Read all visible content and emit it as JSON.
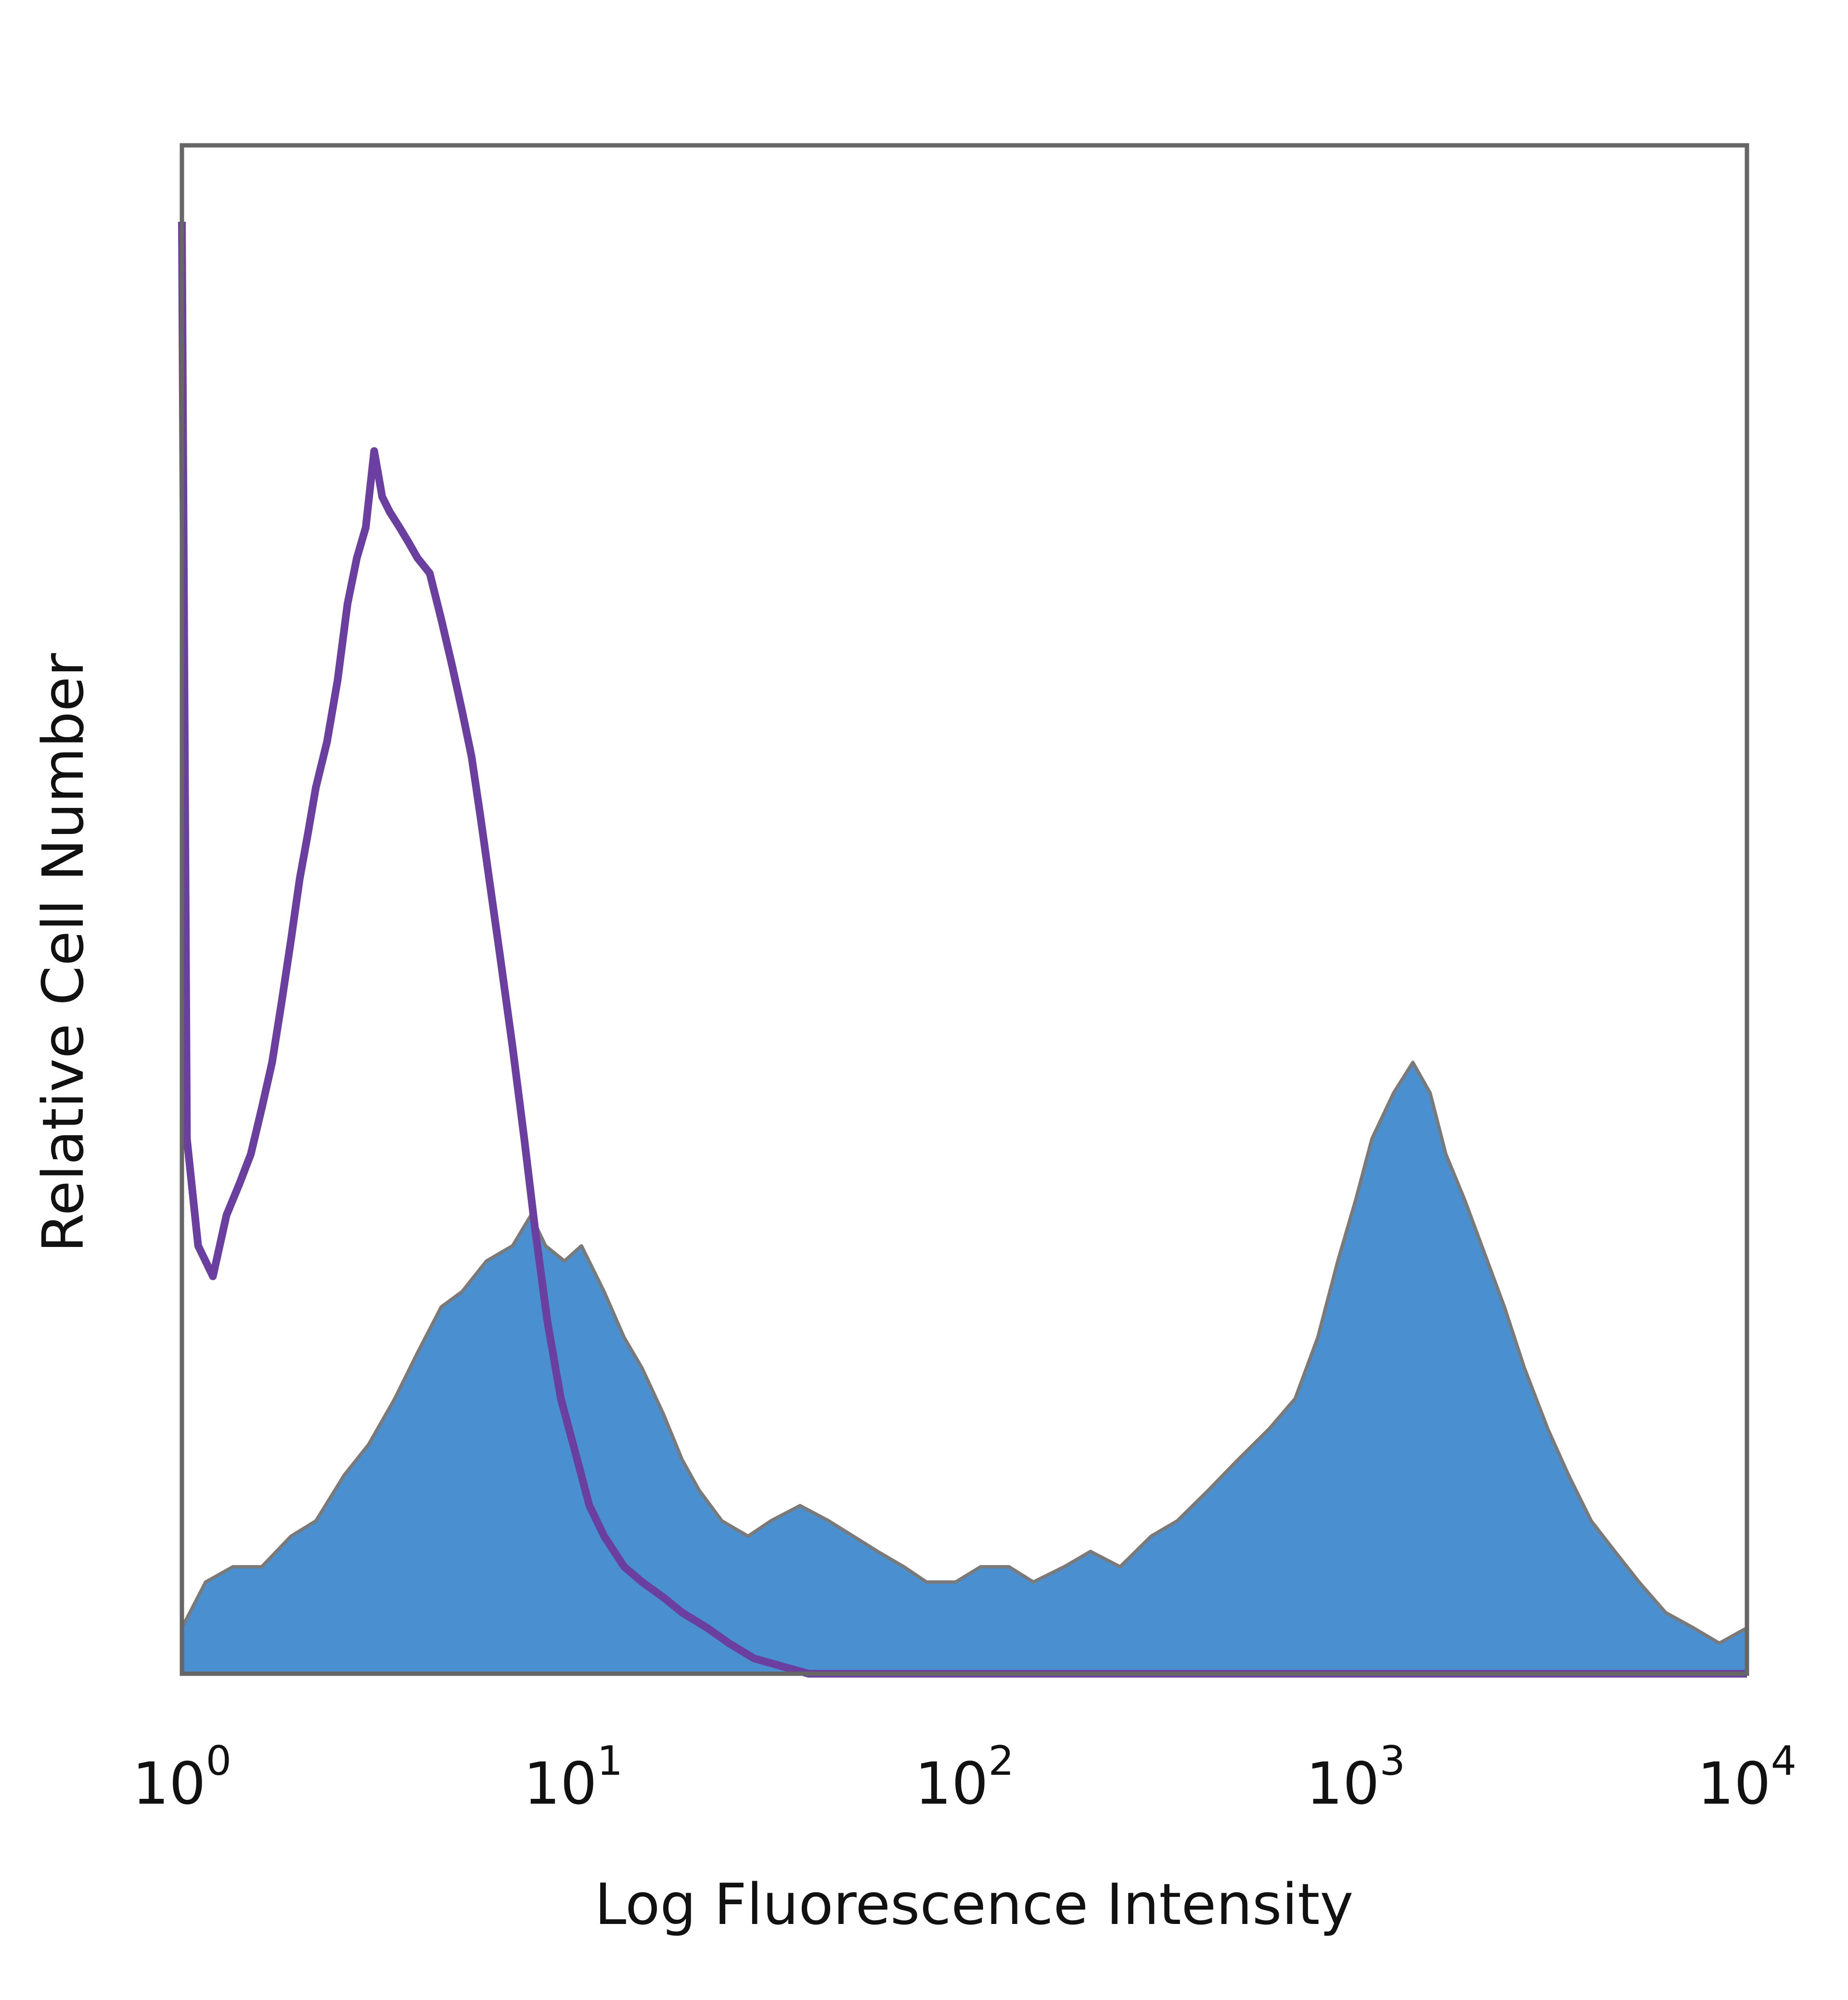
{
  "chart_data": {
    "type": "area",
    "title": "",
    "xlabel": "Log Fluorescence Intensity",
    "ylabel": "Relative Cell Number",
    "x_scale": "log",
    "xlim": [
      1,
      10000
    ],
    "ylim": [
      0,
      1
    ],
    "x_ticks": [
      {
        "value": 1,
        "base": "10",
        "exp": "0"
      },
      {
        "value": 10,
        "base": "10",
        "exp": "1"
      },
      {
        "value": 100,
        "base": "10",
        "exp": "2"
      },
      {
        "value": 1000,
        "base": "10",
        "exp": "3"
      },
      {
        "value": 10000,
        "base": "10",
        "exp": "4"
      }
    ],
    "y_ticks": [],
    "grid": false,
    "legend": "none",
    "series": [
      {
        "style": "filled",
        "color": "#4a8fd0",
        "edge_color": "#7a7a7a",
        "points": [
          [
            1.0,
            0.03
          ],
          [
            1.15,
            0.06
          ],
          [
            1.35,
            0.07
          ],
          [
            1.6,
            0.07
          ],
          [
            1.9,
            0.09
          ],
          [
            2.2,
            0.1
          ],
          [
            2.6,
            0.13
          ],
          [
            3.0,
            0.15
          ],
          [
            3.5,
            0.18
          ],
          [
            4.0,
            0.21
          ],
          [
            4.6,
            0.24
          ],
          [
            5.2,
            0.25
          ],
          [
            6.0,
            0.27
          ],
          [
            7.0,
            0.28
          ],
          [
            7.8,
            0.3
          ],
          [
            8.5,
            0.28
          ],
          [
            9.5,
            0.27
          ],
          [
            10.5,
            0.28
          ],
          [
            12.0,
            0.25
          ],
          [
            13.5,
            0.22
          ],
          [
            15.0,
            0.2
          ],
          [
            17.0,
            0.17
          ],
          [
            19.0,
            0.14
          ],
          [
            21.0,
            0.12
          ],
          [
            24.0,
            0.1
          ],
          [
            28.0,
            0.09
          ],
          [
            32.0,
            0.1
          ],
          [
            38.0,
            0.11
          ],
          [
            45.0,
            0.1
          ],
          [
            52.0,
            0.09
          ],
          [
            60.0,
            0.08
          ],
          [
            70.0,
            0.07
          ],
          [
            80.0,
            0.06
          ],
          [
            95.0,
            0.06
          ],
          [
            110.0,
            0.07
          ],
          [
            130.0,
            0.07
          ],
          [
            150.0,
            0.06
          ],
          [
            180.0,
            0.07
          ],
          [
            210.0,
            0.08
          ],
          [
            250.0,
            0.07
          ],
          [
            300.0,
            0.09
          ],
          [
            350.0,
            0.1
          ],
          [
            420.0,
            0.12
          ],
          [
            500.0,
            0.14
          ],
          [
            600.0,
            0.16
          ],
          [
            700.0,
            0.18
          ],
          [
            800.0,
            0.22
          ],
          [
            900.0,
            0.27
          ],
          [
            1000.0,
            0.31
          ],
          [
            1100.0,
            0.35
          ],
          [
            1250.0,
            0.38
          ],
          [
            1400.0,
            0.4
          ],
          [
            1550.0,
            0.38
          ],
          [
            1700.0,
            0.34
          ],
          [
            1900.0,
            0.31
          ],
          [
            2100.0,
            0.28
          ],
          [
            2400.0,
            0.24
          ],
          [
            2700.0,
            0.2
          ],
          [
            3100.0,
            0.16
          ],
          [
            3500.0,
            0.13
          ],
          [
            4000.0,
            0.1
          ],
          [
            4600.0,
            0.08
          ],
          [
            5300.0,
            0.06
          ],
          [
            6200.0,
            0.04
          ],
          [
            7300.0,
            0.03
          ],
          [
            8500.0,
            0.02
          ],
          [
            10000.0,
            0.03
          ]
        ]
      },
      {
        "style": "outline",
        "color": "#6a3fa0",
        "points": [
          [
            1.0,
            0.95
          ],
          [
            1.03,
            0.35
          ],
          [
            1.1,
            0.28
          ],
          [
            1.2,
            0.26
          ],
          [
            1.3,
            0.3
          ],
          [
            1.4,
            0.32
          ],
          [
            1.5,
            0.34
          ],
          [
            1.6,
            0.37
          ],
          [
            1.7,
            0.4
          ],
          [
            1.8,
            0.44
          ],
          [
            1.9,
            0.48
          ],
          [
            2.0,
            0.52
          ],
          [
            2.1,
            0.55
          ],
          [
            2.2,
            0.58
          ],
          [
            2.35,
            0.61
          ],
          [
            2.5,
            0.65
          ],
          [
            2.65,
            0.7
          ],
          [
            2.8,
            0.73
          ],
          [
            2.95,
            0.75
          ],
          [
            3.1,
            0.8
          ],
          [
            3.25,
            0.77
          ],
          [
            3.4,
            0.76
          ],
          [
            3.6,
            0.75
          ],
          [
            3.8,
            0.74
          ],
          [
            4.0,
            0.73
          ],
          [
            4.3,
            0.72
          ],
          [
            4.6,
            0.69
          ],
          [
            4.9,
            0.66
          ],
          [
            5.2,
            0.63
          ],
          [
            5.5,
            0.6
          ],
          [
            5.8,
            0.56
          ],
          [
            6.1,
            0.52
          ],
          [
            6.5,
            0.47
          ],
          [
            7.0,
            0.41
          ],
          [
            7.5,
            0.35
          ],
          [
            8.0,
            0.29
          ],
          [
            8.6,
            0.23
          ],
          [
            9.3,
            0.18
          ],
          [
            10.0,
            0.15
          ],
          [
            11.0,
            0.11
          ],
          [
            12.0,
            0.09
          ],
          [
            13.5,
            0.07
          ],
          [
            15.0,
            0.06
          ],
          [
            17.0,
            0.05
          ],
          [
            19.0,
            0.04
          ],
          [
            22.0,
            0.03
          ],
          [
            25.0,
            0.02
          ],
          [
            29.0,
            0.01
          ],
          [
            34.0,
            0.005
          ],
          [
            40.0,
            0.0
          ],
          [
            100.0,
            0.0
          ],
          [
            1000.0,
            0.0
          ],
          [
            10000.0,
            0.0
          ]
        ]
      }
    ]
  }
}
